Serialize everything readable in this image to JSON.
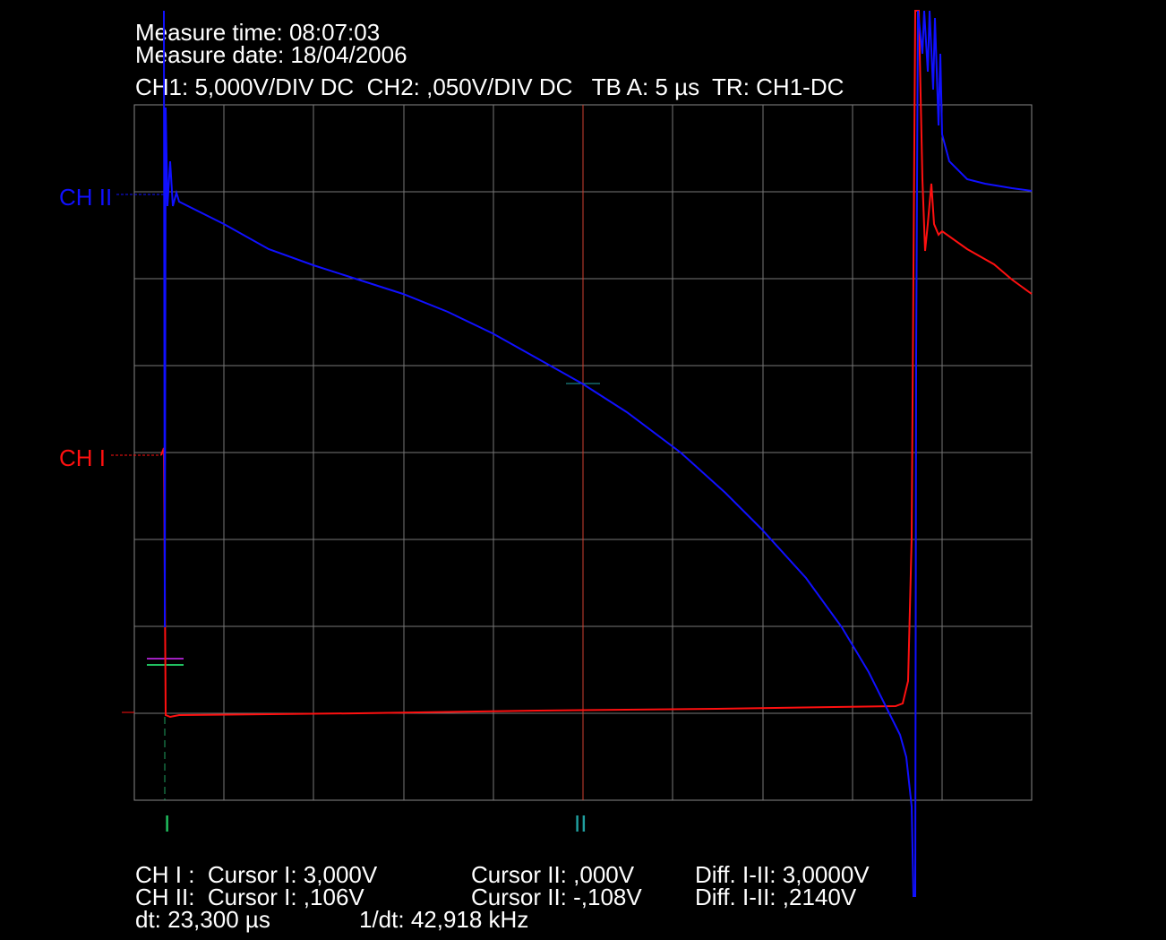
{
  "header": {
    "time": "Measure time: 08:07:03",
    "date": "Measure date: 18/04/2006",
    "settings": "CH1: 5,000V/DIV DC  CH2: ,050V/DIV DC   TB A: 5 µs  TR: CH1-DC"
  },
  "channels": {
    "ch2": "CH II",
    "ch1": "CH I"
  },
  "cursors": {
    "first": "I",
    "second": "II"
  },
  "readout": {
    "rows": [
      [
        "CH I :  Cursor I: 3,000V",
        "Cursor II: ,000V",
        "Diff. I-II: 3,0000V"
      ],
      [
        "CH II:  Cursor I: ,106V",
        "Cursor II: -,108V",
        "Diff. I-II: ,2140V"
      ]
    ],
    "dt": "dt: 23,300 µs",
    "freq": "1/dt: 42,918 kHz"
  }
}
